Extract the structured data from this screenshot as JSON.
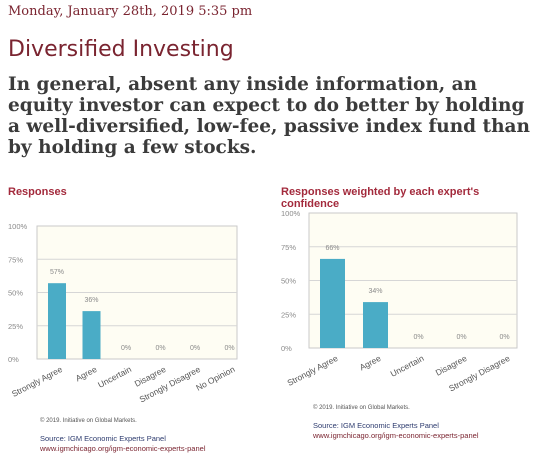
{
  "post": {
    "timestamp": "Monday, January 28th, 2019 5:35 pm",
    "title": "Diversified Investing",
    "question": "In general, absent any inside information, an equity investor can expect to do better by holding a well-diversified, low-fee, passive index fund than by holding a few stocks."
  },
  "colors": {
    "bar": "#4aacc6",
    "grid": "#d6d6d6",
    "panel": "#fefdf3",
    "axis_text": "#8a8a8a"
  },
  "chart_data": [
    {
      "type": "bar",
      "title": "Responses",
      "categories": [
        "Strongly Agree",
        "Agree",
        "Uncertain",
        "Disagree",
        "Strongly Disagree",
        "No Opinion"
      ],
      "values": [
        57,
        36,
        0,
        0,
        0,
        0
      ],
      "value_labels": [
        "57%",
        "36%",
        "0%",
        "0%",
        "0%",
        "0%"
      ],
      "yticks": [
        "0%",
        "25%",
        "50%",
        "75%",
        "100%"
      ],
      "ylim": [
        0,
        100
      ],
      "grid": true,
      "copyright": "© 2019. Initiative on Global Markets.",
      "source": "Source: IGM Economic Experts Panel",
      "url": "www.igmchicago.org/igm-economic-experts-panel"
    },
    {
      "type": "bar",
      "title": "Responses weighted by each expert's confidence",
      "categories": [
        "Strongly Agree",
        "Agree",
        "Uncertain",
        "Disagree",
        "Strongly Disagree"
      ],
      "values": [
        66,
        34,
        0,
        0,
        0
      ],
      "value_labels": [
        "66%",
        "34%",
        "0%",
        "0%",
        "0%"
      ],
      "yticks": [
        "0%",
        "25%",
        "50%",
        "75%",
        "100%"
      ],
      "ylim": [
        0,
        100
      ],
      "grid": true,
      "copyright": "© 2019. Initiative on Global Markets.",
      "source": "Source: IGM Economic Experts Panel",
      "url": "www.igmchicago.org/igm-economic-experts-panel"
    }
  ]
}
